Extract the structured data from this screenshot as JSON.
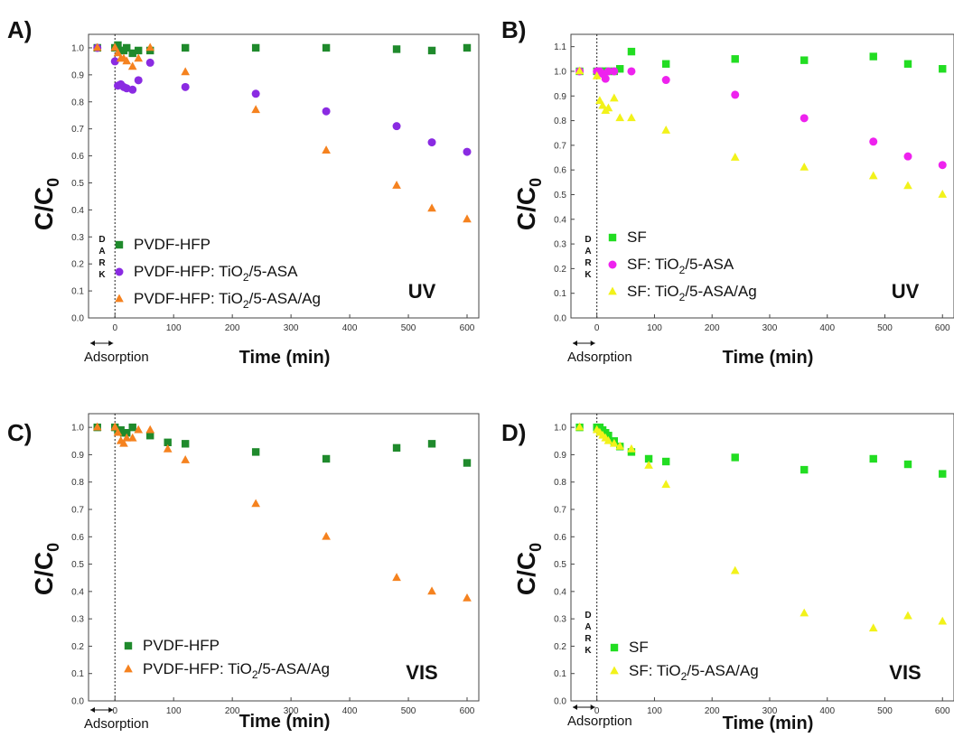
{
  "chart_data": [
    {
      "type": "scatter",
      "panel_label": "A)",
      "condition": "UV",
      "xlabel": "Time (min)",
      "ylabel": "C/C0",
      "xlim": [
        -45,
        620
      ],
      "ylim": [
        0,
        1.05
      ],
      "x_ticks": [
        0,
        100,
        200,
        300,
        400,
        500,
        600
      ],
      "y_ticks": [
        0.0,
        0.1,
        0.2,
        0.3,
        0.4,
        0.5,
        0.6,
        0.7,
        0.8,
        0.9,
        1.0
      ],
      "dark_label": "DARK",
      "adsorption_label": "Adsorption",
      "legend": {
        "items": [
          {
            "series": 0,
            "parts": [
              [
                "PVDF-HFP",
                false
              ]
            ]
          },
          {
            "series": 1,
            "parts": [
              [
                "PVDF-HFP: TiO",
                false
              ],
              [
                "2",
                true
              ],
              [
                "/5-ASA",
                false
              ]
            ]
          },
          {
            "series": 2,
            "parts": [
              [
                "PVDF-HFP: TiO",
                false
              ],
              [
                "2",
                true
              ],
              [
                "/5-ASA/Ag",
                false
              ]
            ]
          }
        ]
      },
      "series": [
        {
          "marker": "square",
          "color": "#1f8a2c",
          "x": [
            -30,
            0,
            5,
            10,
            15,
            20,
            30,
            40,
            60,
            120,
            240,
            360,
            480,
            540,
            600
          ],
          "y": [
            1.0,
            1.0,
            1.01,
            0.99,
            0.99,
            1.0,
            0.98,
            0.99,
            0.99,
            1.0,
            1.0,
            1.0,
            0.995,
            0.99,
            1.0
          ]
        },
        {
          "marker": "circle",
          "color": "#8a2be2",
          "x": [
            -30,
            0,
            5,
            10,
            15,
            20,
            30,
            40,
            60,
            120,
            240,
            360,
            480,
            540,
            600
          ],
          "y": [
            1.0,
            0.95,
            0.86,
            0.865,
            0.855,
            0.85,
            0.845,
            0.88,
            0.945,
            0.855,
            0.83,
            0.765,
            0.71,
            0.65,
            0.615
          ]
        },
        {
          "marker": "triangle",
          "color": "#f5821f",
          "x": [
            -30,
            0,
            5,
            10,
            15,
            20,
            30,
            40,
            60,
            120,
            240,
            360,
            480,
            540,
            600
          ],
          "y": [
            1.0,
            1.0,
            0.98,
            0.96,
            0.96,
            0.95,
            0.93,
            0.96,
            1.0,
            0.91,
            0.77,
            0.62,
            0.49,
            0.405,
            0.365
          ]
        }
      ]
    },
    {
      "type": "scatter",
      "panel_label": "B)",
      "condition": "UV",
      "xlabel": "Time (min)",
      "ylabel": "C/C0",
      "xlim": [
        -45,
        620
      ],
      "ylim": [
        0,
        1.15
      ],
      "x_ticks": [
        0,
        100,
        200,
        300,
        400,
        500,
        600
      ],
      "y_ticks": [
        0.0,
        0.1,
        0.2,
        0.3,
        0.4,
        0.5,
        0.6,
        0.7,
        0.8,
        0.9,
        1.0,
        1.1
      ],
      "dark_label": "DARK",
      "adsorption_label": "Adsorption",
      "legend": {
        "items": [
          {
            "series": 0,
            "parts": [
              [
                "SF",
                false
              ]
            ]
          },
          {
            "series": 1,
            "parts": [
              [
                "SF: TiO",
                false
              ],
              [
                "2",
                true
              ],
              [
                "/5-ASA",
                false
              ]
            ]
          },
          {
            "series": 2,
            "parts": [
              [
                "SF: TiO",
                false
              ],
              [
                "2",
                true
              ],
              [
                "/5-ASA/Ag",
                false
              ]
            ]
          }
        ]
      },
      "series": [
        {
          "marker": "square",
          "color": "#22dd22",
          "x": [
            -30,
            0,
            5,
            10,
            15,
            20,
            30,
            40,
            60,
            120,
            240,
            360,
            480,
            540,
            600
          ],
          "y": [
            1.0,
            1.0,
            1.0,
            1.0,
            1.0,
            1.0,
            1.0,
            1.01,
            1.08,
            1.03,
            1.05,
            1.045,
            1.06,
            1.03,
            1.01
          ]
        },
        {
          "marker": "circle",
          "color": "#ee22ee",
          "x": [
            -30,
            0,
            5,
            10,
            15,
            20,
            30,
            60,
            120,
            240,
            360,
            480,
            540,
            600
          ],
          "y": [
            1.0,
            1.0,
            1.0,
            0.99,
            0.97,
            1.0,
            1.0,
            1.0,
            0.965,
            0.905,
            0.81,
            0.715,
            0.655,
            0.62
          ]
        },
        {
          "marker": "triangle",
          "color": "#f2f21a",
          "x": [
            -30,
            0,
            5,
            10,
            15,
            20,
            30,
            40,
            60,
            120,
            240,
            360,
            480,
            540,
            600
          ],
          "y": [
            1.0,
            0.98,
            0.88,
            0.86,
            0.84,
            0.85,
            0.89,
            0.81,
            0.81,
            0.76,
            0.65,
            0.61,
            0.575,
            0.535,
            0.5
          ]
        }
      ]
    },
    {
      "type": "scatter",
      "panel_label": "C)",
      "condition": "VIS",
      "xlabel": "Time (min)",
      "ylabel": "C/C0",
      "xlim": [
        -45,
        620
      ],
      "ylim": [
        0,
        1.05
      ],
      "x_ticks": [
        0,
        100,
        200,
        300,
        400,
        500,
        600
      ],
      "y_ticks": [
        0.0,
        0.1,
        0.2,
        0.3,
        0.4,
        0.5,
        0.6,
        0.7,
        0.8,
        0.9,
        1.0
      ],
      "dark_label": "",
      "adsorption_label": "Adsorption",
      "legend": {
        "items": [
          {
            "series": 0,
            "parts": [
              [
                "PVDF-HFP",
                false
              ]
            ]
          },
          {
            "series": 1,
            "parts": [
              [
                "PVDF-HFP: TiO",
                false
              ],
              [
                "2",
                true
              ],
              [
                "/5-ASA/Ag",
                false
              ]
            ]
          }
        ]
      },
      "series": [
        {
          "marker": "square",
          "color": "#1f8a2c",
          "x": [
            -30,
            0,
            5,
            10,
            15,
            20,
            30,
            60,
            90,
            120,
            240,
            360,
            480,
            540,
            600
          ],
          "y": [
            1.0,
            1.0,
            0.99,
            0.99,
            0.98,
            0.98,
            1.0,
            0.97,
            0.945,
            0.94,
            0.91,
            0.885,
            0.925,
            0.94,
            0.87
          ]
        },
        {
          "marker": "triangle",
          "color": "#f5821f",
          "x": [
            -30,
            0,
            5,
            10,
            15,
            20,
            30,
            40,
            60,
            90,
            120,
            240,
            360,
            480,
            540,
            600
          ],
          "y": [
            1.0,
            1.0,
            0.98,
            0.95,
            0.94,
            0.96,
            0.96,
            0.99,
            0.99,
            0.92,
            0.88,
            0.72,
            0.6,
            0.45,
            0.4,
            0.375
          ]
        }
      ]
    },
    {
      "type": "scatter",
      "panel_label": "D)",
      "condition": "VIS",
      "xlabel": "Time (min)",
      "ylabel": "C/C0",
      "xlim": [
        -45,
        620
      ],
      "ylim": [
        0,
        1.05
      ],
      "x_ticks": [
        0,
        100,
        200,
        300,
        400,
        500,
        600
      ],
      "y_ticks": [
        0.0,
        0.1,
        0.2,
        0.3,
        0.4,
        0.5,
        0.6,
        0.7,
        0.8,
        0.9,
        1.0
      ],
      "dark_label": "DARK",
      "adsorption_label": "Adsorption",
      "legend": {
        "items": [
          {
            "series": 0,
            "parts": [
              [
                "SF",
                false
              ]
            ]
          },
          {
            "series": 1,
            "parts": [
              [
                "SF: TiO",
                false
              ],
              [
                "2",
                true
              ],
              [
                "/5-ASA/Ag",
                false
              ]
            ]
          }
        ]
      },
      "series": [
        {
          "marker": "square",
          "color": "#22dd22",
          "x": [
            -30,
            0,
            5,
            10,
            15,
            20,
            30,
            40,
            60,
            90,
            120,
            240,
            360,
            480,
            540,
            600
          ],
          "y": [
            1.0,
            1.0,
            1.0,
            0.99,
            0.98,
            0.97,
            0.95,
            0.93,
            0.91,
            0.885,
            0.875,
            0.89,
            0.845,
            0.885,
            0.865,
            0.83
          ]
        },
        {
          "marker": "triangle",
          "color": "#f2f21a",
          "x": [
            -30,
            0,
            5,
            10,
            15,
            20,
            30,
            40,
            60,
            90,
            120,
            240,
            360,
            480,
            540,
            600
          ],
          "y": [
            1.0,
            0.99,
            0.98,
            0.97,
            0.96,
            0.95,
            0.94,
            0.93,
            0.92,
            0.86,
            0.79,
            0.475,
            0.32,
            0.265,
            0.31,
            0.29
          ]
        }
      ]
    }
  ]
}
